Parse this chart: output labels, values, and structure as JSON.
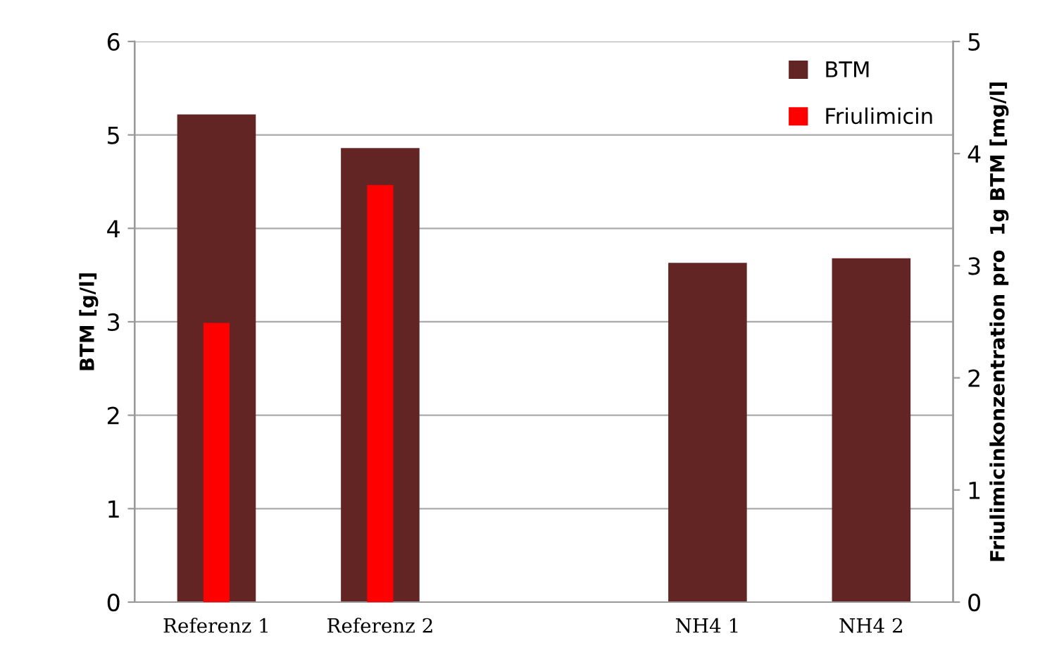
{
  "chart_data": {
    "type": "bar",
    "categories": [
      "Referenz 1",
      "Referenz 2",
      null,
      "NH4 1",
      "NH4 2"
    ],
    "series": [
      {
        "name": "BTM",
        "color": "#632523",
        "values": [
          5.22,
          4.86,
          null,
          3.63,
          3.68
        ]
      },
      {
        "name": "Friulimicin",
        "color": "#ff0000",
        "values": [
          2.49,
          3.72,
          null,
          null,
          null
        ],
        "axis": "y2"
      }
    ],
    "ylabel": "BTM [g/l]",
    "y2label": "Friulimicinkonzentration pro  1g BTM [mg/l]",
    "ylim": [
      0,
      6
    ],
    "yticks": [
      0,
      1,
      2,
      3,
      4,
      5,
      6
    ],
    "y2lim": [
      0,
      5
    ],
    "y2ticks": [
      0,
      1,
      2,
      3,
      4,
      5
    ],
    "grid": "y",
    "legend": "top right"
  }
}
